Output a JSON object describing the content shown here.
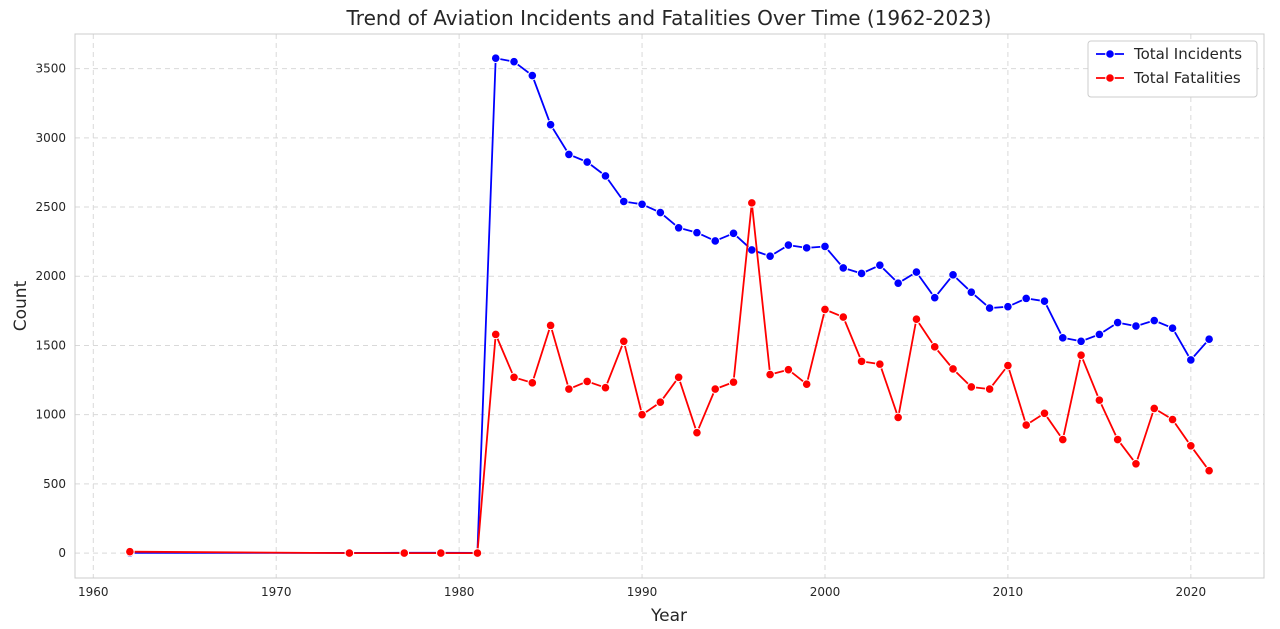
{
  "chart_data": {
    "type": "line",
    "title": "Trend of Aviation Incidents and Fatalities Over Time (1962-2023)",
    "xlabel": "Year",
    "ylabel": "Count",
    "xlim": [
      1959,
      2024
    ],
    "ylim": [
      -180,
      3750
    ],
    "x_ticks": [
      1960,
      1970,
      1980,
      1990,
      2000,
      2010,
      2020
    ],
    "y_ticks": [
      0,
      500,
      1000,
      1500,
      2000,
      2500,
      3000,
      3500
    ],
    "grid": true,
    "legend_position": "top-right",
    "x": [
      1962,
      1974,
      1977,
      1979,
      1981,
      1982,
      1983,
      1984,
      1985,
      1986,
      1987,
      1988,
      1989,
      1990,
      1991,
      1992,
      1993,
      1994,
      1995,
      1996,
      1997,
      1998,
      1999,
      2000,
      2001,
      2002,
      2003,
      2004,
      2005,
      2006,
      2007,
      2008,
      2009,
      2010,
      2011,
      2012,
      2013,
      2014,
      2015,
      2016,
      2017,
      2018,
      2019,
      2020,
      2021
    ],
    "series": [
      {
        "name": "Total Incidents",
        "color": "#0000ff",
        "values": [
          1,
          1,
          2,
          2,
          1,
          3575,
          3550,
          3450,
          3095,
          2880,
          2825,
          2725,
          2540,
          2520,
          2460,
          2350,
          2315,
          2255,
          2310,
          2190,
          2145,
          2225,
          2205,
          2215,
          2060,
          2020,
          2080,
          1950,
          2030,
          1845,
          2010,
          1885,
          1770,
          1780,
          1840,
          1820,
          1555,
          1530,
          1580,
          1665,
          1640,
          1680,
          1625,
          1395,
          1545
        ]
      },
      {
        "name": "Total Fatalities",
        "color": "#ff0000",
        "values": [
          10,
          0,
          0,
          0,
          0,
          1580,
          1270,
          1230,
          1645,
          1185,
          1240,
          1195,
          1530,
          1000,
          1090,
          1270,
          870,
          1185,
          1235,
          2530,
          1290,
          1325,
          1220,
          1760,
          1705,
          1385,
          1365,
          980,
          1690,
          1490,
          1330,
          1200,
          1185,
          1355,
          925,
          1010,
          820,
          1430,
          1105,
          820,
          645,
          1045,
          965,
          775,
          595
        ]
      }
    ]
  }
}
